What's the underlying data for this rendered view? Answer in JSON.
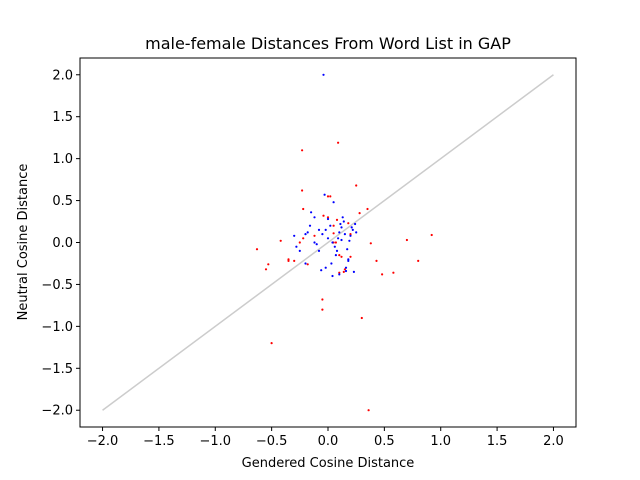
{
  "chart_data": {
    "type": "scatter",
    "title": "male-female Distances From Word List in GAP",
    "xlabel": "Gendered Cosine Distance",
    "ylabel": "Neutral Cosine Distance",
    "xlim": [
      -2.2,
      2.2
    ],
    "ylim": [
      -2.2,
      2.2
    ],
    "xticks": [
      -2.0,
      -1.5,
      -1.0,
      -0.5,
      0.0,
      0.5,
      1.0,
      1.5,
      2.0
    ],
    "yticks": [
      -2.0,
      -1.5,
      -1.0,
      -0.5,
      0.0,
      0.5,
      1.0,
      1.5,
      2.0
    ],
    "xtick_labels": [
      "−2.0",
      "−1.5",
      "−1.0",
      "−0.5",
      "0.0",
      "0.5",
      "1.0",
      "1.5",
      "2.0"
    ],
    "ytick_labels": [
      "−2.0",
      "−1.5",
      "−1.0",
      "−0.5",
      "0.0",
      "0.5",
      "1.0",
      "1.5",
      "2.0"
    ],
    "grid": false,
    "reference_line": {
      "x": [
        -2.0,
        2.0
      ],
      "y": [
        -2.0,
        2.0
      ],
      "color": "#cccccc"
    },
    "series": [
      {
        "color": "#ff0000",
        "x": [
          0.09,
          -0.23,
          -0.23,
          0.25,
          -0.63,
          -0.55,
          -0.42,
          -0.35,
          -0.3,
          -0.22,
          -0.18,
          -0.12,
          -0.05,
          0.0,
          0.02,
          0.05,
          0.08,
          0.1,
          0.12,
          0.15,
          0.18,
          0.2,
          0.28,
          0.35,
          0.38,
          0.43,
          0.48,
          0.58,
          0.7,
          0.8,
          0.92,
          -0.5,
          -0.53,
          -0.35,
          -0.05,
          -0.04,
          0.05,
          0.3,
          0.36,
          0.05,
          0.07,
          0.14,
          -0.22,
          0.0,
          0.1,
          -0.25,
          0.2
        ],
        "y": [
          1.19,
          1.1,
          0.62,
          0.68,
          -0.08,
          -0.32,
          0.02,
          -0.2,
          -0.22,
          0.05,
          -0.26,
          0.08,
          -0.8,
          0.3,
          0.55,
          0.2,
          0.27,
          -0.15,
          -0.17,
          -0.32,
          0.23,
          0.1,
          0.35,
          0.4,
          -0.01,
          -0.22,
          -0.38,
          -0.36,
          0.03,
          -0.22,
          0.09,
          -1.2,
          -0.26,
          -0.22,
          -0.68,
          0.32,
          0.0,
          -0.9,
          -2.0,
          0.11,
          0.0,
          -0.35,
          0.4,
          0.55,
          -0.36,
          0.0,
          -0.17
        ]
      },
      {
        "color": "#0000ff",
        "x": [
          -0.04,
          -0.03,
          0.05,
          -0.15,
          -0.12,
          -0.08,
          -0.05,
          0.0,
          0.02,
          0.04,
          0.06,
          0.08,
          0.1,
          0.12,
          0.14,
          0.16,
          0.18,
          0.2,
          0.22,
          0.24,
          -0.3,
          -0.28,
          -0.25,
          -0.2,
          -0.18,
          -0.1,
          -0.06,
          -0.02,
          0.03,
          0.07,
          0.09,
          0.11,
          0.13,
          0.15,
          0.17,
          0.19,
          0.21,
          0.23,
          0.25,
          -0.08,
          -0.02,
          0.04,
          0.1,
          0.16,
          -0.12,
          -0.2,
          0.0,
          0.12,
          0.18,
          -0.16
        ],
        "y": [
          2.0,
          0.57,
          0.48,
          0.36,
          0.3,
          0.15,
          0.1,
          0.05,
          0.2,
          0.0,
          -0.05,
          -0.1,
          0.12,
          0.18,
          0.25,
          -0.3,
          -0.22,
          0.08,
          0.15,
          0.22,
          0.08,
          -0.05,
          -0.1,
          -0.25,
          0.12,
          -0.02,
          -0.33,
          -0.3,
          -0.25,
          -0.15,
          0.05,
          0.22,
          0.3,
          0.1,
          -0.08,
          0.02,
          0.18,
          -0.35,
          0.12,
          -0.1,
          0.15,
          -0.4,
          -0.38,
          -0.34,
          0.0,
          0.1,
          0.28,
          0.03,
          -0.2,
          0.2
        ]
      }
    ]
  }
}
